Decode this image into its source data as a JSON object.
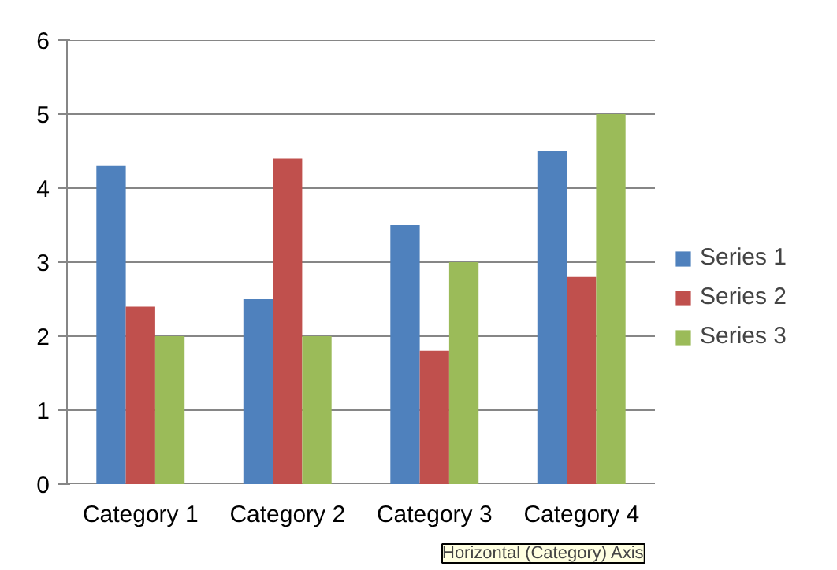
{
  "chart_data": {
    "type": "bar",
    "categories": [
      "Category 1",
      "Category 2",
      "Category 3",
      "Category 4"
    ],
    "series": [
      {
        "name": "Series 1",
        "color": "#4f81bd",
        "values": [
          4.3,
          2.5,
          3.5,
          4.5
        ]
      },
      {
        "name": "Series 2",
        "color": "#c0504d",
        "values": [
          2.4,
          4.4,
          1.8,
          2.8
        ]
      },
      {
        "name": "Series 3",
        "color": "#9bbb59",
        "values": [
          2,
          2,
          3,
          5
        ]
      }
    ],
    "ylim": [
      0,
      6
    ],
    "yticks": [
      0,
      1,
      2,
      3,
      4,
      5,
      6
    ],
    "grid": "y",
    "legend": "right",
    "annotations": [
      "Horizontal (Category) Axis"
    ]
  }
}
